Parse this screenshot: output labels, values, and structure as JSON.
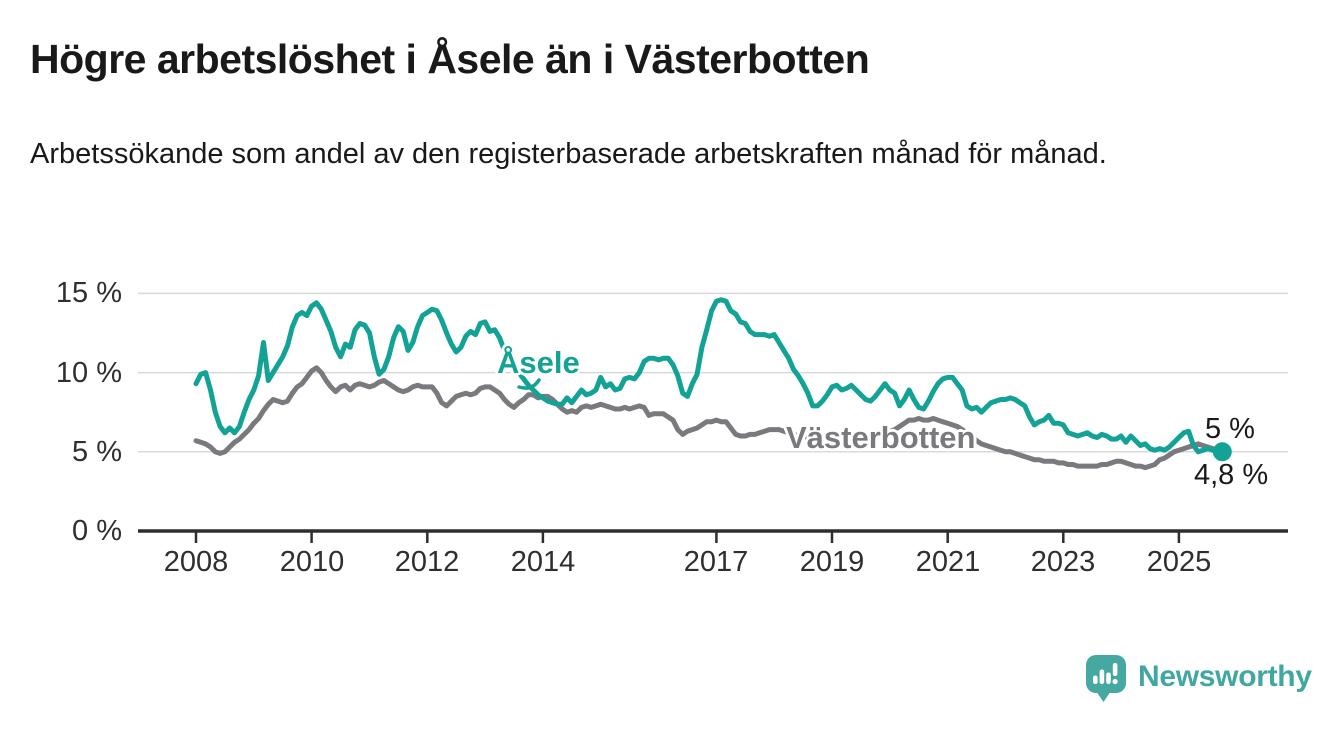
{
  "header": {
    "title": "Högre arbetslöshet i Åsele än i Västerbotten",
    "subtitle": "Arbetssökande som andel av den registerbaserade arbetskraften månad för månad."
  },
  "chart_data": {
    "type": "line",
    "title": "Högre arbetslöshet i Åsele än i Västerbotten",
    "subtitle": "Arbetssökande som andel av den registerbaserade arbetskraften månad för månad.",
    "xlabel": "",
    "ylabel": "",
    "unit": "%",
    "frequency": "monthly",
    "x_start": {
      "year": 2008,
      "month": 1
    },
    "x_end": {
      "year": 2025,
      "month": 10
    },
    "ylim": [
      0,
      16
    ],
    "grid": "horizontal",
    "legend_position": "inline-labels",
    "y_tick_values": [
      0,
      5,
      10,
      15
    ],
    "y_ticks": [
      "0 %",
      "5 %",
      "10 %",
      "15 %"
    ],
    "x_tick_years": [
      2008,
      2010,
      2012,
      2014,
      2017,
      2019,
      2021,
      2023,
      2025
    ],
    "x_tick_labels": [
      "2008",
      "2010",
      "2012",
      "2014",
      "2017",
      "2019",
      "2021",
      "2023",
      "2025"
    ],
    "series": [
      {
        "name": "Åsele",
        "label": "Åsele",
        "color": "#12A396",
        "end_label": "5 %",
        "end_value": 5.0,
        "values": [
          9.3,
          9.9,
          10.0,
          8.9,
          7.5,
          6.6,
          6.2,
          6.5,
          6.2,
          6.6,
          7.5,
          8.3,
          8.9,
          9.8,
          11.9,
          9.5,
          10.0,
          10.5,
          11.0,
          11.7,
          12.9,
          13.6,
          13.8,
          13.6,
          14.2,
          14.4,
          14.0,
          13.3,
          12.6,
          11.6,
          11.0,
          11.8,
          11.6,
          12.7,
          13.1,
          13.0,
          12.5,
          11.0,
          9.9,
          10.2,
          11.0,
          12.2,
          12.9,
          12.6,
          11.4,
          11.9,
          12.9,
          13.6,
          13.8,
          14.0,
          13.9,
          13.3,
          12.5,
          11.8,
          11.3,
          11.6,
          12.3,
          12.6,
          12.4,
          13.1,
          13.2,
          12.6,
          12.7,
          12.2,
          11.4,
          11.0,
          10.5,
          10.0,
          9.6,
          9.2,
          8.9,
          8.6,
          8.4,
          8.2,
          8.1,
          8.0,
          8.0,
          8.4,
          8.1,
          8.5,
          8.9,
          8.6,
          8.7,
          8.9,
          9.7,
          9.1,
          9.3,
          8.9,
          9.0,
          9.6,
          9.7,
          9.6,
          10.0,
          10.7,
          10.9,
          10.9,
          10.8,
          10.9,
          10.9,
          10.5,
          9.8,
          8.7,
          8.5,
          9.3,
          9.9,
          11.6,
          12.7,
          13.9,
          14.5,
          14.6,
          14.5,
          13.9,
          13.7,
          13.2,
          13.1,
          12.6,
          12.4,
          12.4,
          12.4,
          12.3,
          12.4,
          11.9,
          11.4,
          10.9,
          10.2,
          9.8,
          9.3,
          8.7,
          7.9,
          7.9,
          8.2,
          8.6,
          9.1,
          9.2,
          8.9,
          9.0,
          9.2,
          8.9,
          8.6,
          8.3,
          8.2,
          8.5,
          8.9,
          9.3,
          8.9,
          8.7,
          7.9,
          8.3,
          8.9,
          8.3,
          7.8,
          7.7,
          8.2,
          8.8,
          9.3,
          9.6,
          9.7,
          9.7,
          9.3,
          8.9,
          7.9,
          7.7,
          7.8,
          7.5,
          7.8,
          8.1,
          8.2,
          8.3,
          8.3,
          8.4,
          8.3,
          8.1,
          7.9,
          7.2,
          6.7,
          6.9,
          7.0,
          7.3,
          6.8,
          6.8,
          6.7,
          6.2,
          6.1,
          6.0,
          6.1,
          6.2,
          6.0,
          5.9,
          6.1,
          6.0,
          5.8,
          5.8,
          6.0,
          5.6,
          6.0,
          5.7,
          5.4,
          5.5,
          5.2,
          5.1,
          5.2,
          5.1,
          5.3,
          5.6,
          5.9,
          6.2,
          6.3,
          5.4,
          5.0,
          5.1,
          5.2,
          5.1,
          5.0,
          5.0
        ]
      },
      {
        "name": "Västerbotten",
        "label": "Västerbotten",
        "color": "#79797E",
        "end_label": "4,8 %",
        "end_value": 4.8,
        "values": [
          5.7,
          5.6,
          5.5,
          5.3,
          5.0,
          4.9,
          5.0,
          5.3,
          5.6,
          5.8,
          6.1,
          6.4,
          6.8,
          7.1,
          7.6,
          8.0,
          8.3,
          8.2,
          8.1,
          8.2,
          8.7,
          9.1,
          9.3,
          9.7,
          10.1,
          10.3,
          10.0,
          9.5,
          9.1,
          8.8,
          9.1,
          9.2,
          8.9,
          9.2,
          9.3,
          9.2,
          9.1,
          9.2,
          9.4,
          9.5,
          9.3,
          9.1,
          8.9,
          8.8,
          8.9,
          9.1,
          9.2,
          9.1,
          9.1,
          9.1,
          8.7,
          8.1,
          7.9,
          8.2,
          8.5,
          8.6,
          8.7,
          8.6,
          8.7,
          9.0,
          9.1,
          9.1,
          8.9,
          8.7,
          8.3,
          8.0,
          7.8,
          8.1,
          8.3,
          8.6,
          8.6,
          8.4,
          8.5,
          8.5,
          8.3,
          8.0,
          7.7,
          7.5,
          7.6,
          7.5,
          7.8,
          7.9,
          7.8,
          7.9,
          8.0,
          7.9,
          7.8,
          7.7,
          7.7,
          7.8,
          7.7,
          7.8,
          7.9,
          7.8,
          7.3,
          7.4,
          7.4,
          7.4,
          7.2,
          7.0,
          6.4,
          6.1,
          6.3,
          6.4,
          6.5,
          6.7,
          6.9,
          6.9,
          7.0,
          6.9,
          6.9,
          6.5,
          6.1,
          6.0,
          6.0,
          6.1,
          6.1,
          6.2,
          6.3,
          6.4,
          6.4,
          6.4,
          6.3,
          6.2,
          6.1,
          6.0,
          6.0,
          5.9,
          5.9,
          5.9,
          6.0,
          6.0,
          6.0,
          6.0,
          5.9,
          5.9,
          5.8,
          5.8,
          5.9,
          5.9,
          6.0,
          6.0,
          6.1,
          6.2,
          6.3,
          6.4,
          6.6,
          6.8,
          7.0,
          7.0,
          7.1,
          7.0,
          7.0,
          7.1,
          7.0,
          6.9,
          6.8,
          6.7,
          6.6,
          6.4,
          6.2,
          6.0,
          5.7,
          5.5,
          5.4,
          5.3,
          5.2,
          5.1,
          5.0,
          5.0,
          4.9,
          4.8,
          4.7,
          4.6,
          4.5,
          4.5,
          4.4,
          4.4,
          4.4,
          4.3,
          4.3,
          4.2,
          4.2,
          4.1,
          4.1,
          4.1,
          4.1,
          4.1,
          4.2,
          4.2,
          4.3,
          4.4,
          4.4,
          4.3,
          4.2,
          4.1,
          4.1,
          4.0,
          4.1,
          4.2,
          4.5,
          4.6,
          4.8,
          5.0,
          5.1,
          5.2,
          5.3,
          5.4,
          5.5,
          5.4,
          5.3,
          5.2,
          5.0,
          4.8
        ]
      }
    ]
  },
  "logo": {
    "text": "Newsworthy",
    "icon": "newsworthy-chart-bubble-icon",
    "color": "#41A7A1"
  },
  "colors": {
    "accent_teal": "#12A396",
    "series_gray": "#79797E",
    "logo_teal": "#45A8A1",
    "grid": "#D8D8D8",
    "axis": "#2E2E2E",
    "text": "#191919",
    "tick_text": "#2F2F2F"
  }
}
